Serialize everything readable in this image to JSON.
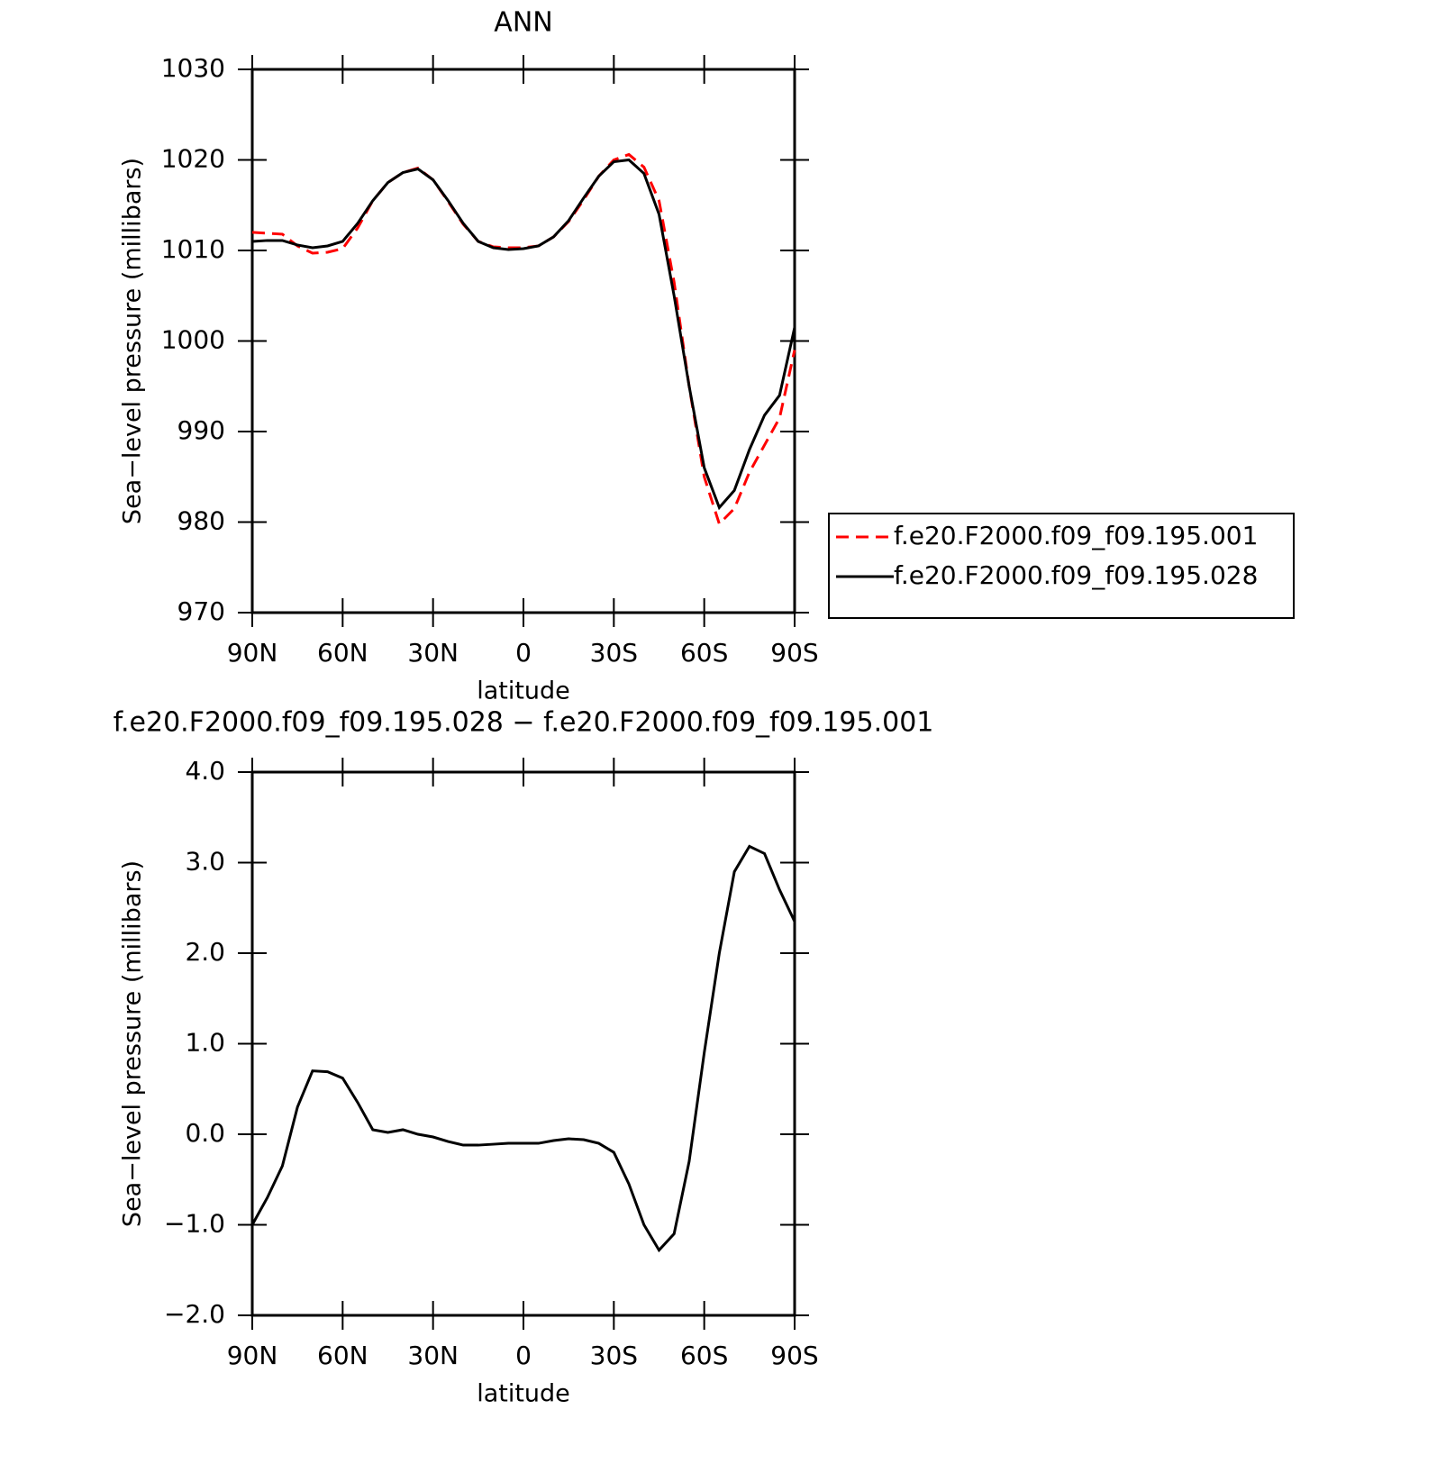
{
  "chart_data": [
    {
      "type": "line",
      "title": "ANN",
      "xlabel": "latitude",
      "ylabel": "Sea−level pressure (millibars)",
      "x": [
        90,
        85,
        80,
        75,
        70,
        65,
        60,
        55,
        50,
        45,
        40,
        35,
        30,
        25,
        20,
        15,
        10,
        5,
        0,
        -5,
        -10,
        -15,
        -20,
        -25,
        -30,
        -35,
        -40,
        -45,
        -50,
        -55,
        -60,
        -65,
        -70,
        -75,
        -80,
        -85,
        -90
      ],
      "series": [
        {
          "name": "f.e20.F2000.f09_f09.195.001",
          "color": "#ff0000",
          "dash": true,
          "values": [
            1012.0,
            1011.9,
            1011.8,
            1010.5,
            1009.7,
            1009.8,
            1010.2,
            1012.5,
            1015.5,
            1017.5,
            1018.6,
            1019.1,
            1017.8,
            1015.4,
            1012.9,
            1011.0,
            1010.4,
            1010.3,
            1010.3,
            1010.5,
            1011.5,
            1013.2,
            1015.6,
            1018.2,
            1020.0,
            1020.6,
            1019.2,
            1015.5,
            1006.5,
            995.0,
            985.0,
            979.8,
            981.5,
            985.5,
            988.5,
            991.5,
            999.0
          ]
        },
        {
          "name": "f.e20.F2000.f09_f09.195.028",
          "color": "#000000",
          "dash": false,
          "values": [
            1011.0,
            1011.1,
            1011.1,
            1010.6,
            1010.3,
            1010.5,
            1011.0,
            1013.0,
            1015.5,
            1017.5,
            1018.6,
            1019.0,
            1017.8,
            1015.5,
            1013.0,
            1011.0,
            1010.3,
            1010.1,
            1010.2,
            1010.5,
            1011.5,
            1013.3,
            1015.8,
            1018.2,
            1019.8,
            1020.0,
            1018.5,
            1014.0,
            1005.0,
            995.0,
            986.0,
            981.6,
            983.5,
            988.0,
            991.8,
            994.0,
            1001.5
          ]
        }
      ],
      "xlim": [
        90,
        -90
      ],
      "xticks": [
        {
          "value": 90,
          "label": "90N"
        },
        {
          "value": 60,
          "label": "60N"
        },
        {
          "value": 30,
          "label": "30N"
        },
        0,
        {
          "value": -30,
          "label": "30S"
        },
        {
          "value": -60,
          "label": "60S"
        },
        {
          "value": -90,
          "label": "90S"
        }
      ],
      "ylim": [
        970,
        1030
      ],
      "yticks": [
        970,
        980,
        990,
        1000,
        1010,
        1020,
        1030
      ],
      "legend": "right"
    },
    {
      "type": "line",
      "title": "f.e20.F2000.f09_f09.195.028 − f.e20.F2000.f09_f09.195.001",
      "xlabel": "latitude",
      "ylabel": "Sea−level pressure (millibars)",
      "x": [
        90,
        85,
        80,
        75,
        70,
        65,
        60,
        55,
        50,
        45,
        40,
        35,
        30,
        25,
        20,
        15,
        10,
        5,
        0,
        -5,
        -10,
        -15,
        -20,
        -25,
        -30,
        -35,
        -40,
        -45,
        -50,
        -55,
        -60,
        -65,
        -70,
        -75,
        -80,
        -85,
        -90
      ],
      "series": [
        {
          "color": "#000000",
          "values": [
            -1.0,
            -0.7,
            -0.35,
            0.3,
            0.7,
            0.69,
            0.62,
            0.35,
            0.05,
            0.02,
            0.05,
            0.0,
            -0.03,
            -0.08,
            -0.12,
            -0.12,
            -0.11,
            -0.1,
            -0.1,
            -0.1,
            -0.07,
            -0.05,
            -0.06,
            -0.1,
            -0.2,
            -0.55,
            -1.0,
            -1.28,
            -1.1,
            -0.3,
            0.9,
            2.0,
            2.9,
            3.18,
            3.1,
            2.7,
            2.35
          ]
        }
      ],
      "xlim": [
        90,
        -90
      ],
      "xticks": [
        {
          "value": 90,
          "label": "90N"
        },
        {
          "value": 60,
          "label": "60N"
        },
        {
          "value": 30,
          "label": "30N"
        },
        0,
        {
          "value": -30,
          "label": "30S"
        },
        {
          "value": -60,
          "label": "60S"
        },
        {
          "value": -90,
          "label": "90S"
        }
      ],
      "ylim": [
        -2,
        4
      ],
      "yticks": [
        {
          "value": -2,
          "label": "−2.0"
        },
        {
          "value": -1,
          "label": "−1.0"
        },
        {
          "value": 0,
          "label": "0.0"
        },
        {
          "value": 1,
          "label": "1.0"
        },
        {
          "value": 2,
          "label": "2.0"
        },
        {
          "value": 3,
          "label": "3.0"
        },
        {
          "value": 4,
          "label": "4.0"
        }
      ]
    }
  ]
}
